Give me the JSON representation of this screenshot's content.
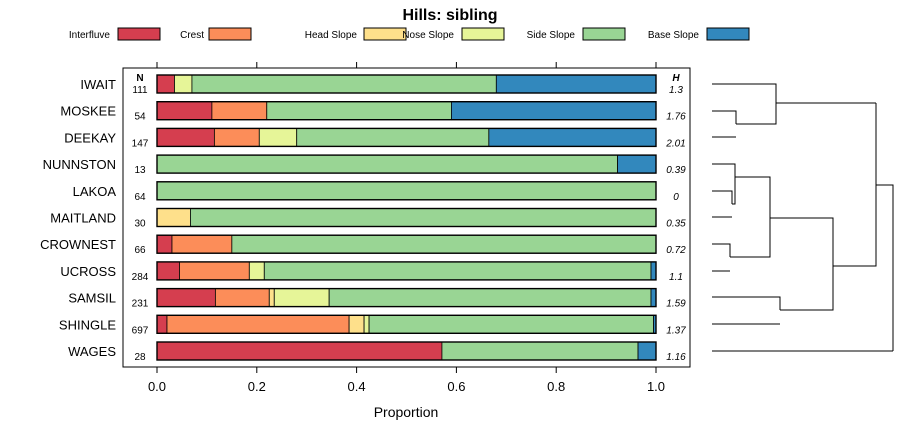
{
  "chart_data": {
    "type": "bar",
    "orientation": "horizontal",
    "stacked": true,
    "title": "Hills: sibling",
    "xlabel": "Proportion",
    "ylabel": "",
    "xlim": [
      0,
      1
    ],
    "xticks": [
      0,
      0.2,
      0.4,
      0.6,
      0.8,
      1
    ],
    "xtick_labels": [
      "0.0",
      "0.2",
      "0.4",
      "0.6",
      "0.8",
      "1.0"
    ],
    "n_header": "N",
    "h_header": "H",
    "legend_position": "top",
    "series": [
      {
        "name": "Interfluve",
        "color": "#D53E4F"
      },
      {
        "name": "Crest",
        "color": "#FC8D59"
      },
      {
        "name": "Head Slope",
        "color": "#FEE08B"
      },
      {
        "name": "Nose Slope",
        "color": "#E6F598"
      },
      {
        "name": "Side Slope",
        "color": "#99D594"
      },
      {
        "name": "Base Slope",
        "color": "#3288BD"
      }
    ],
    "rows": [
      {
        "category": "IWAIT",
        "n": "111",
        "h": "1.3",
        "values": [
          0.035,
          0.0,
          0.0,
          0.035,
          0.61,
          0.32
        ]
      },
      {
        "category": "MOSKEE",
        "n": "54",
        "h": "1.76",
        "values": [
          0.11,
          0.11,
          0.0,
          0.0,
          0.37,
          0.41
        ]
      },
      {
        "category": "DEEKAY",
        "n": "147",
        "h": "2.01",
        "values": [
          0.115,
          0.09,
          0.0,
          0.075,
          0.385,
          0.335
        ]
      },
      {
        "category": "NUNNSTON",
        "n": "13",
        "h": "0.39",
        "values": [
          0.0,
          0.0,
          0.0,
          0.0,
          0.923,
          0.077
        ]
      },
      {
        "category": "LAKOA",
        "n": "64",
        "h": "0",
        "values": [
          0.0,
          0.0,
          0.0,
          0.0,
          1.0,
          0.0
        ]
      },
      {
        "category": "MAITLAND",
        "n": "30",
        "h": "0.35",
        "values": [
          0.0,
          0.0,
          0.067,
          0.0,
          0.933,
          0.0
        ]
      },
      {
        "category": "CROWNEST",
        "n": "66",
        "h": "0.72",
        "values": [
          0.03,
          0.12,
          0.0,
          0.0,
          0.85,
          0.0
        ]
      },
      {
        "category": "UCROSS",
        "n": "284",
        "h": "1.1",
        "values": [
          0.045,
          0.14,
          0.0,
          0.03,
          0.775,
          0.01
        ]
      },
      {
        "category": "SAMSIL",
        "n": "231",
        "h": "1.59",
        "values": [
          0.117,
          0.108,
          0.01,
          0.11,
          0.645,
          0.01
        ]
      },
      {
        "category": "SHINGLE",
        "n": "697",
        "h": "1.37",
        "values": [
          0.02,
          0.365,
          0.03,
          0.01,
          0.57,
          0.005
        ]
      },
      {
        "category": "WAGES",
        "n": "28",
        "h": "1.16",
        "values": [
          0.571,
          0.0,
          0.0,
          0.0,
          0.393,
          0.036
        ]
      }
    ]
  }
}
